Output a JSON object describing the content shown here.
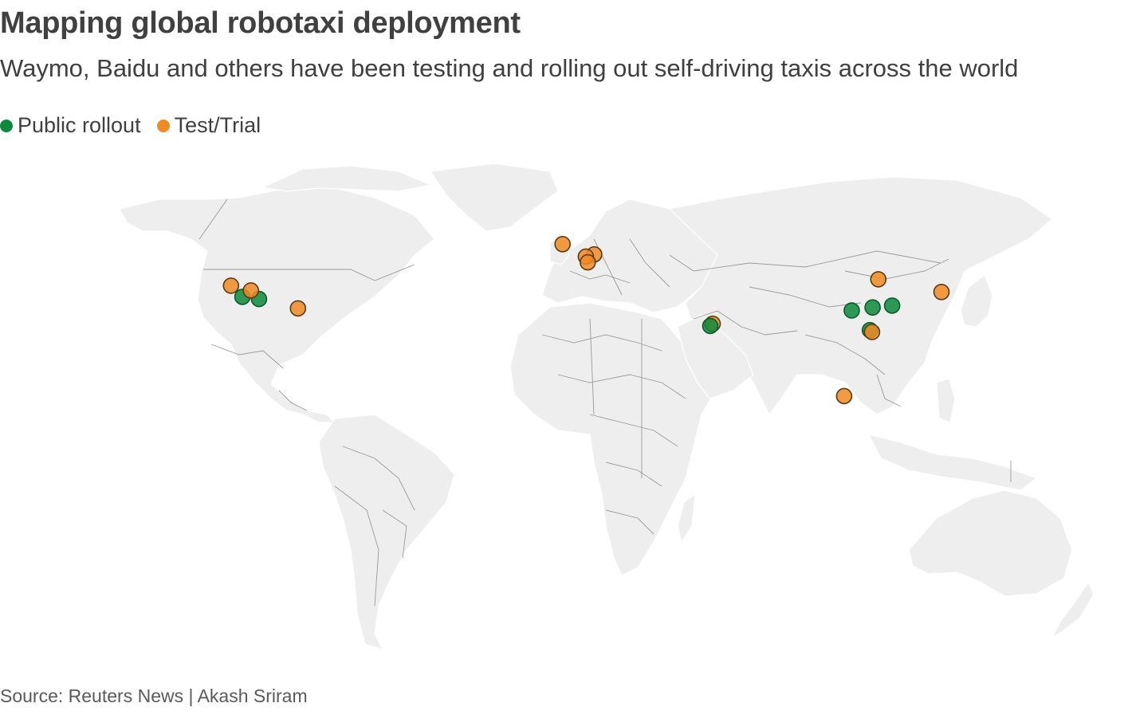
{
  "header": {
    "title": "Mapping global robotaxi deployment",
    "subtitle": "Waymo, Baidu and others have been testing and rolling out self-driving taxis across the world"
  },
  "legend": {
    "items": [
      {
        "label": "Public rollout",
        "color": "#0b8a3c"
      },
      {
        "label": "Test/Trial",
        "color": "#f08a24"
      }
    ]
  },
  "colors": {
    "public": "#0b8a3c",
    "trial": "#f08a24",
    "land": "#eeeeee",
    "border": "#9a9a9a"
  },
  "locations": [
    {
      "status": "trial",
      "lon": -122.4,
      "lat": 37.8
    },
    {
      "status": "public",
      "lon": -118.2,
      "lat": 34.1
    },
    {
      "status": "public",
      "lon": -112.1,
      "lat": 33.4
    },
    {
      "status": "trial",
      "lon": -115.1,
      "lat": 36.2
    },
    {
      "status": "trial",
      "lon": -97.7,
      "lat": 30.3
    },
    {
      "status": "trial",
      "lon": -0.1,
      "lat": 51.5
    },
    {
      "status": "trial",
      "lon": 11.6,
      "lat": 48.1
    },
    {
      "status": "trial",
      "lon": 8.5,
      "lat": 47.4
    },
    {
      "status": "trial",
      "lon": 9.2,
      "lat": 45.5
    },
    {
      "status": "trial",
      "lon": 55.3,
      "lat": 25.2
    },
    {
      "status": "public",
      "lon": 54.4,
      "lat": 24.5
    },
    {
      "status": "trial",
      "lon": 116.4,
      "lat": 39.9
    },
    {
      "status": "public",
      "lon": 114.3,
      "lat": 30.6
    },
    {
      "status": "public",
      "lon": 106.6,
      "lat": 29.6
    },
    {
      "status": "public",
      "lon": 121.5,
      "lat": 31.2
    },
    {
      "status": "public",
      "lon": 113.3,
      "lat": 23.1
    },
    {
      "status": "trial",
      "lon": 114.1,
      "lat": 22.5
    },
    {
      "status": "trial",
      "lon": 103.8,
      "lat": 1.35
    },
    {
      "status": "trial",
      "lon": 139.7,
      "lat": 35.7
    }
  ],
  "footer": {
    "source": "Source: Reuters News | Akash Sriram"
  }
}
